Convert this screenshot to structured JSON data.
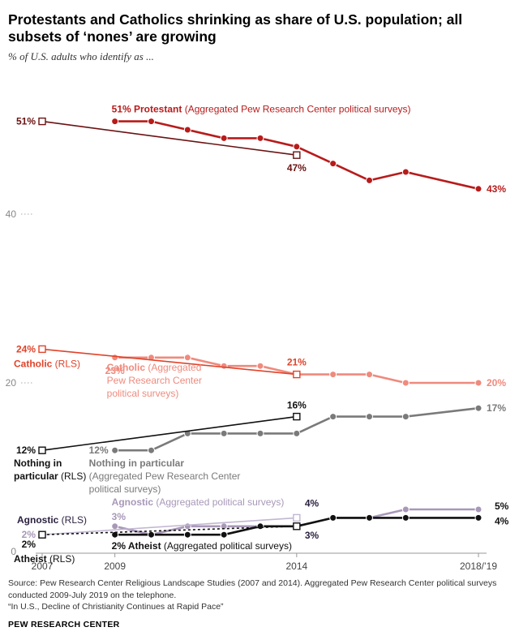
{
  "header": {
    "title": "Protestants and Catholics shrinking as share of U.S. population; all subsets of ‘nones’ are growing",
    "subtitle": "% of U.S. adults who identify as ..."
  },
  "chart_data": {
    "type": "line",
    "x_ticks": [
      {
        "value": 2007,
        "label": "2007"
      },
      {
        "value": 2009,
        "label": "2009"
      },
      {
        "value": 2014,
        "label": "2014"
      },
      {
        "value": 2019,
        "label": "2018/’19"
      }
    ],
    "y_ticks": [
      {
        "value": 0,
        "label": "0"
      },
      {
        "value": 20,
        "label": "20"
      },
      {
        "value": 40,
        "label": "40"
      }
    ],
    "ylim": [
      0,
      55
    ],
    "xlim": [
      2007,
      2019
    ],
    "grid": false,
    "series": [
      {
        "key": "protestant_pol",
        "color": "#b81b1b",
        "marker": "circle",
        "dash": false,
        "x": [
          2009,
          2010,
          2011,
          2012,
          2013,
          2014,
          2015,
          2016,
          2017,
          2019
        ],
        "y": [
          51,
          51,
          50,
          49,
          49,
          48,
          46,
          44,
          45,
          43
        ]
      },
      {
        "key": "protestant_rls",
        "color": "#6b1212",
        "marker": "square",
        "dash": false,
        "x": [
          2007,
          2014
        ],
        "y": [
          51,
          47
        ]
      },
      {
        "key": "catholic_pol",
        "color": "#ef8a7d",
        "marker": "circle",
        "dash": false,
        "x": [
          2009,
          2010,
          2011,
          2012,
          2013,
          2014,
          2015,
          2016,
          2017,
          2019
        ],
        "y": [
          23,
          23,
          23,
          22,
          22,
          21,
          21,
          21,
          20,
          20
        ]
      },
      {
        "key": "catholic_rls",
        "color": "#e0432a",
        "marker": "square",
        "dash": false,
        "x": [
          2007,
          2014
        ],
        "y": [
          24,
          21
        ]
      },
      {
        "key": "nip_pol",
        "color": "#7a7a7a",
        "marker": "circle",
        "dash": false,
        "x": [
          2009,
          2010,
          2011,
          2012,
          2013,
          2014,
          2015,
          2016,
          2017,
          2019
        ],
        "y": [
          12,
          12,
          14,
          14,
          14,
          14,
          16,
          16,
          16,
          17
        ]
      },
      {
        "key": "nip_rls",
        "color": "#111111",
        "marker": "square",
        "dash": false,
        "x": [
          2007,
          2014
        ],
        "y": [
          12,
          16
        ]
      },
      {
        "key": "agnostic_pol",
        "color": "#a898b8",
        "marker": "circle",
        "dash": false,
        "x": [
          2009,
          2010,
          2011,
          2012,
          2013,
          2014,
          2015,
          2016,
          2017,
          2019
        ],
        "y": [
          3,
          2,
          3,
          3,
          3,
          3,
          4,
          4,
          5,
          5
        ]
      },
      {
        "key": "agnostic_rls",
        "color": "#c2b6d2",
        "marker": "square",
        "dash": false,
        "x": [
          2007,
          2014
        ],
        "y": [
          2,
          4
        ]
      },
      {
        "key": "atheist_pol",
        "color": "#111111",
        "marker": "circle",
        "dash": false,
        "x": [
          2009,
          2010,
          2011,
          2012,
          2013,
          2014,
          2015,
          2016,
          2017,
          2019
        ],
        "y": [
          2,
          2,
          2,
          2,
          3,
          3,
          4,
          4,
          4,
          4
        ]
      },
      {
        "key": "atheist_rls",
        "color": "#111111",
        "marker": "square",
        "dash": true,
        "x": [
          2007,
          2014
        ],
        "y": [
          2,
          3
        ]
      }
    ],
    "annotations": [
      {
        "x": 2007,
        "y": 51,
        "dx": -8,
        "dy": 4,
        "anchor": "end",
        "color": "#6b1212",
        "parts": [
          {
            "t": "51%",
            "b": true
          }
        ]
      },
      {
        "x": 2009,
        "y": 51,
        "dx": -4,
        "dy": -11,
        "anchor": "start",
        "color": "#b81b1b",
        "parts": [
          {
            "t": "51% Protestant",
            "b": true
          },
          {
            "t": " (Aggregated Pew Research Center political surveys)",
            "b": false
          }
        ]
      },
      {
        "x": 2014,
        "y": 47,
        "dx": 0,
        "dy": 20,
        "anchor": "middle",
        "color": "#6b1212",
        "parts": [
          {
            "t": "47%",
            "b": true
          }
        ]
      },
      {
        "x": 2019,
        "y": 43,
        "dx": 10,
        "dy": 4,
        "anchor": "start",
        "color": "#b81b1b",
        "parts": [
          {
            "t": "43%",
            "b": true
          }
        ]
      },
      {
        "x": 2007,
        "y": 24,
        "dx": -8,
        "dy": 4,
        "anchor": "end",
        "color": "#e0432a",
        "parts": [
          {
            "t": "24%",
            "b": true
          }
        ]
      },
      {
        "x": 2007,
        "y": 24,
        "dx": -35,
        "dy": 22,
        "anchor": "start",
        "color": "#e0432a",
        "parts": [
          {
            "t": "Catholic",
            "b": true
          },
          {
            "t": " (RLS)",
            "b": false
          }
        ]
      },
      {
        "x": 2014,
        "y": 21,
        "dx": 0,
        "dy": -11,
        "anchor": "middle",
        "color": "#e0432a",
        "parts": [
          {
            "t": "21%",
            "b": true
          }
        ]
      },
      {
        "x": 2009,
        "y": 23,
        "dx": 0,
        "dy": 20,
        "anchor": "middle",
        "color": "#ef8a7d",
        "parts": [
          {
            "t": "23%",
            "b": true
          }
        ]
      },
      {
        "x": 2009,
        "y": 23,
        "dx": -10,
        "dy": 16,
        "anchor": "start",
        "color": "#ef8a7d",
        "parts": [
          {
            "t": "Catholic",
            "b": true
          },
          {
            "t": " (Aggregated",
            "b": false
          }
        ]
      },
      {
        "x": 2009,
        "y": 23,
        "dx": -10,
        "dy": 32,
        "anchor": "start",
        "color": "#ef8a7d",
        "parts": [
          {
            "t": "Pew Research Center",
            "b": false
          }
        ]
      },
      {
        "x": 2009,
        "y": 23,
        "dx": -10,
        "dy": 48,
        "anchor": "start",
        "color": "#ef8a7d",
        "parts": [
          {
            "t": "political surveys)",
            "b": false
          }
        ]
      },
      {
        "x": 2019,
        "y": 20,
        "dx": 10,
        "dy": 4,
        "anchor": "start",
        "color": "#ef8a7d",
        "parts": [
          {
            "t": "20%",
            "b": true
          }
        ]
      },
      {
        "x": 2014,
        "y": 16,
        "dx": 0,
        "dy": -10,
        "anchor": "middle",
        "color": "#111111",
        "parts": [
          {
            "t": "16%",
            "b": true
          }
        ]
      },
      {
        "x": 2019,
        "y": 17,
        "dx": 10,
        "dy": 4,
        "anchor": "start",
        "color": "#7a7a7a",
        "parts": [
          {
            "t": "17%",
            "b": true
          }
        ]
      },
      {
        "x": 2007,
        "y": 12,
        "dx": -8,
        "dy": 4,
        "anchor": "end",
        "color": "#111111",
        "parts": [
          {
            "t": "12%",
            "b": true
          }
        ]
      },
      {
        "x": 2007,
        "y": 12,
        "dx": -35,
        "dy": 20,
        "anchor": "start",
        "color": "#111111",
        "parts": [
          {
            "t": "Nothing in",
            "b": true
          }
        ]
      },
      {
        "x": 2007,
        "y": 12,
        "dx": -35,
        "dy": 36,
        "anchor": "start",
        "color": "#111111",
        "parts": [
          {
            "t": "particular",
            "b": true
          },
          {
            "t": " (RLS)",
            "b": false
          }
        ]
      },
      {
        "x": 2009,
        "y": 12,
        "dx": -8,
        "dy": 4,
        "anchor": "end",
        "color": "#7a7a7a",
        "parts": [
          {
            "t": "12%",
            "b": true
          }
        ]
      },
      {
        "x": 2009,
        "y": 12,
        "dx": -32,
        "dy": 20,
        "anchor": "start",
        "color": "#7a7a7a",
        "parts": [
          {
            "t": "Nothing in particular",
            "b": true
          }
        ]
      },
      {
        "x": 2009,
        "y": 12,
        "dx": -32,
        "dy": 36,
        "anchor": "start",
        "color": "#7a7a7a",
        "parts": [
          {
            "t": "(Aggregated Pew Research Center",
            "b": false
          }
        ]
      },
      {
        "x": 2009,
        "y": 12,
        "dx": -32,
        "dy": 52,
        "anchor": "start",
        "color": "#7a7a7a",
        "parts": [
          {
            "t": "political surveys)",
            "b": false
          }
        ]
      },
      {
        "x": 2007,
        "y": 2,
        "dx": -31,
        "dy": -14,
        "anchor": "start",
        "color": "#2a1f3d",
        "parts": [
          {
            "t": "Agnostic",
            "b": true
          },
          {
            "t": " (RLS)",
            "b": false
          }
        ]
      },
      {
        "x": 2007,
        "y": 2,
        "dx": -8,
        "dy": 4,
        "anchor": "end",
        "color": "#a898b8",
        "parts": [
          {
            "t": "2%",
            "b": true
          }
        ]
      },
      {
        "x": 2007,
        "y": 2,
        "dx": -8,
        "dy": 16,
        "anchor": "end",
        "color": "#111111",
        "parts": [
          {
            "t": "2%",
            "b": true
          }
        ]
      },
      {
        "x": 2007,
        "y": 2,
        "dx": -35,
        "dy": 34,
        "anchor": "start",
        "color": "#111111",
        "parts": [
          {
            "t": "Atheist",
            "b": true
          },
          {
            "t": " (RLS)",
            "b": false
          }
        ]
      },
      {
        "x": 2009,
        "y": 3,
        "dx": -4,
        "dy": -26,
        "anchor": "start",
        "color": "#a898b8",
        "parts": [
          {
            "t": "Agnostic",
            "b": true
          },
          {
            "t": " (Aggregated political surveys)",
            "b": false
          }
        ]
      },
      {
        "x": 2009,
        "y": 3,
        "dx": -4,
        "dy": -8,
        "anchor": "start",
        "color": "#a898b8",
        "parts": [
          {
            "t": "3%",
            "b": true
          }
        ]
      },
      {
        "x": 2014,
        "y": 4,
        "dx": 10,
        "dy": -14,
        "anchor": "start",
        "color": "#2a1f3d",
        "parts": [
          {
            "t": "4%",
            "b": true
          }
        ]
      },
      {
        "x": 2014,
        "y": 3,
        "dx": 10,
        "dy": 15,
        "anchor": "start",
        "color": "#2a1f3d",
        "parts": [
          {
            "t": "3%",
            "b": true
          }
        ]
      },
      {
        "x": 2009,
        "y": 2,
        "dx": -4,
        "dy": 18,
        "anchor": "start",
        "color": "#111111",
        "parts": [
          {
            "t": "2% Atheist",
            "b": true
          },
          {
            "t": " (Aggregated political surveys)",
            "b": false
          }
        ]
      },
      {
        "x": 2019,
        "y": 5,
        "dx": 20,
        "dy": 0,
        "anchor": "start",
        "color": "#111111",
        "parts": [
          {
            "t": "5%",
            "b": true
          }
        ]
      },
      {
        "x": 2019,
        "y": 4,
        "dx": 20,
        "dy": 8,
        "anchor": "start",
        "color": "#111111",
        "parts": [
          {
            "t": "4%",
            "b": true
          }
        ]
      }
    ]
  },
  "footer": {
    "source": "Source: Pew Research Center Religious Landscape Studies (2007 and 2014). Aggregated Pew Research Center political surveys conducted 2009-July 2019 on the telephone.",
    "report": "“In U.S., Decline of Christianity Continues at Rapid Pace”",
    "brand": "PEW RESEARCH CENTER"
  }
}
